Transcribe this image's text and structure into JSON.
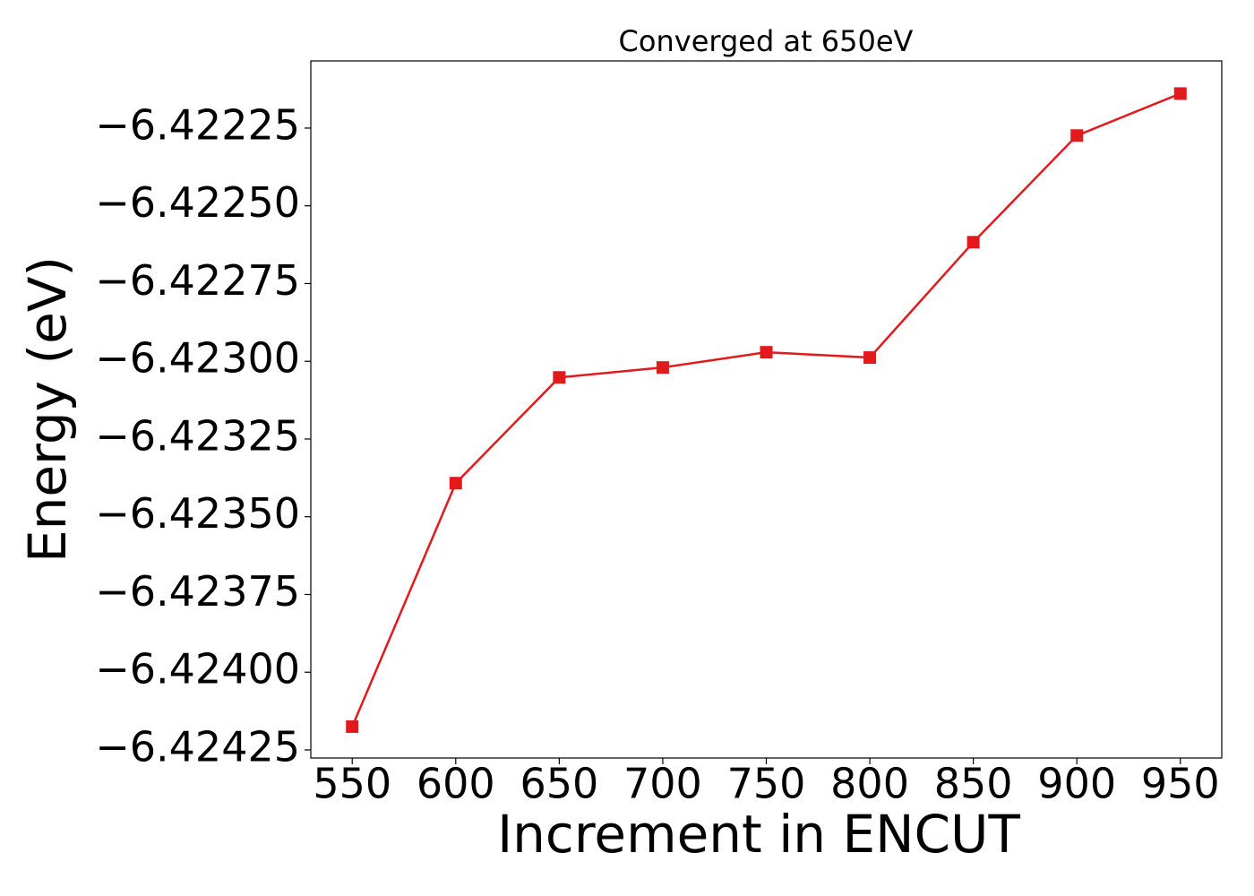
{
  "chart_data": {
    "type": "line",
    "title": "Converged at 650eV",
    "x_label": "Increment in ENCUT",
    "y_label": "Energy (eV)",
    "x": [
      550,
      600,
      650,
      700,
      750,
      800,
      850,
      900,
      950
    ],
    "series": [
      {
        "color": "#e31a1c",
        "values": [
          -6.424175,
          -6.423392,
          -6.423052,
          -6.42302,
          -6.422971,
          -6.422988,
          -6.422617,
          -6.422274,
          -6.422139
        ]
      }
    ],
    "xlim": [
      530,
      970
    ],
    "xticks": [
      550,
      600,
      650,
      700,
      750,
      800,
      850,
      900,
      950
    ],
    "ylim": [
      -6.424276,
      -6.422034
    ],
    "yticks": [
      {
        "value": -6.42425,
        "label": "−6.42425"
      },
      {
        "value": -6.424,
        "label": "−6.42400"
      },
      {
        "value": -6.42375,
        "label": "−6.42375"
      },
      {
        "value": -6.4235,
        "label": "−6.42350"
      },
      {
        "value": -6.42325,
        "label": "−6.42325"
      },
      {
        "value": -6.423,
        "label": "−6.42300"
      },
      {
        "value": -6.42275,
        "label": "−6.42275"
      },
      {
        "value": -6.4225,
        "label": "−6.42250"
      },
      {
        "value": -6.42225,
        "label": "−6.42225"
      }
    ],
    "grid": false
  }
}
